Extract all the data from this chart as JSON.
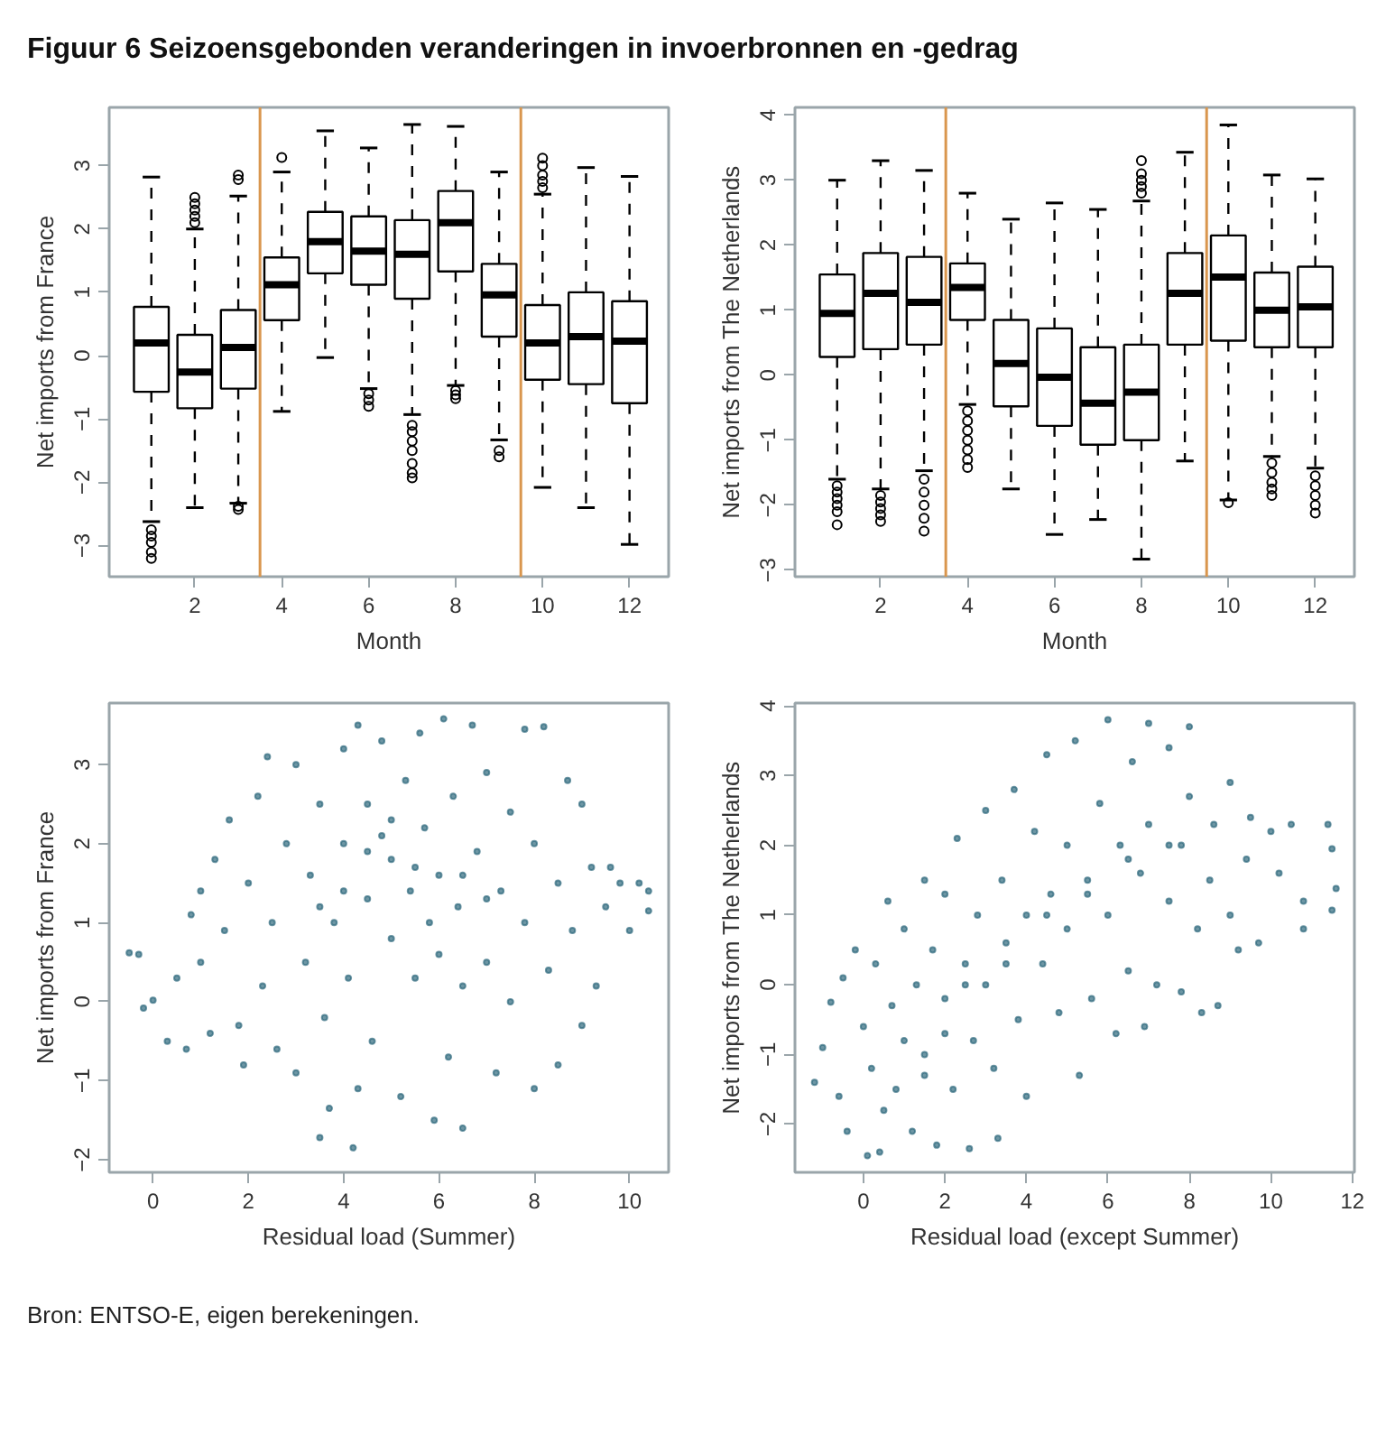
{
  "chart_data": [
    {
      "type": "box",
      "title": "Figuur 6  Seizoensgebonden veranderingen in invoerbronnen en -gedrag",
      "xlabel": "Month",
      "ylabel": "Net imports from France",
      "x": [
        1,
        2,
        3,
        4,
        5,
        6,
        7,
        8,
        9,
        10,
        11,
        12
      ],
      "xlim": [
        0.03,
        12.9
      ],
      "xticks": [
        2,
        4,
        6,
        8,
        10,
        12
      ],
      "ylim": [
        -3.49,
        3.92
      ],
      "yticks": [
        -3,
        -2,
        -1,
        0,
        1,
        2,
        3
      ],
      "boxes": [
        {
          "low": -2.62,
          "q1": -0.57,
          "median": 0.2,
          "q3": 0.77,
          "high": 2.82,
          "outliers": [
            -2.75,
            -2.85,
            -2.95,
            -3.1,
            -3.2
          ]
        },
        {
          "low": -2.4,
          "q1": -0.83,
          "median": -0.26,
          "q3": 0.33,
          "high": 2.0,
          "outliers": [
            2.1,
            2.2,
            2.3,
            2.4,
            2.5
          ]
        },
        {
          "low": -2.33,
          "q1": -0.52,
          "median": 0.13,
          "q3": 0.72,
          "high": 2.52,
          "outliers": [
            2.78,
            2.85,
            -2.38,
            -2.43
          ]
        },
        {
          "low": -0.88,
          "q1": 0.56,
          "median": 1.12,
          "q3": 1.55,
          "high": 2.9,
          "outliers": [
            3.13
          ]
        },
        {
          "low": -0.03,
          "q1": 1.3,
          "median": 1.8,
          "q3": 2.27,
          "high": 3.55
        },
        {
          "low": -0.52,
          "q1": 1.12,
          "median": 1.65,
          "q3": 2.2,
          "high": 3.28,
          "outliers": [
            -0.6,
            -0.7,
            -0.8
          ]
        },
        {
          "low": -0.93,
          "q1": 0.9,
          "median": 1.6,
          "q3": 2.14,
          "high": 3.65,
          "outliers": [
            -1.1,
            -1.2,
            -1.35,
            -1.5,
            -1.7,
            -1.85,
            -1.93
          ]
        },
        {
          "low": -0.47,
          "q1": 1.33,
          "median": 2.1,
          "q3": 2.6,
          "high": 3.62,
          "outliers": [
            -0.55,
            -0.62,
            -0.68
          ]
        },
        {
          "low": -1.33,
          "q1": 0.3,
          "median": 0.96,
          "q3": 1.45,
          "high": 2.9,
          "outliers": [
            -1.5,
            -1.6
          ]
        },
        {
          "low": -2.08,
          "q1": -0.38,
          "median": 0.2,
          "q3": 0.8,
          "high": 2.55,
          "outliers": [
            2.65,
            2.75,
            2.85,
            3.0,
            3.12
          ]
        },
        {
          "low": -2.4,
          "q1": -0.45,
          "median": 0.3,
          "q3": 1.0,
          "high": 2.97
        },
        {
          "low": -2.98,
          "q1": -0.75,
          "median": 0.23,
          "q3": 0.86,
          "high": 2.83
        }
      ],
      "ref_lines": [
        {
          "axis": "x",
          "value": 3.5,
          "color": "#d9964e"
        },
        {
          "axis": "x",
          "value": 9.5,
          "color": "#d9964e"
        }
      ]
    },
    {
      "type": "box",
      "xlabel": "Month",
      "ylabel": "Net imports from The Netherlands",
      "x": [
        1,
        2,
        3,
        4,
        5,
        6,
        7,
        8,
        9,
        10,
        11,
        12
      ],
      "xlim": [
        0.03,
        12.9
      ],
      "xticks": [
        2,
        4,
        6,
        8,
        10,
        12
      ],
      "ylim": [
        -3.1,
        4.12
      ],
      "yticks": [
        -3,
        -2,
        -1,
        0,
        1,
        2,
        3,
        4
      ],
      "boxes": [
        {
          "low": -1.6,
          "q1": 0.28,
          "median": 0.95,
          "q3": 1.55,
          "high": 3.0,
          "outliers": [
            -1.7,
            -1.8,
            -1.9,
            -2.0,
            -2.1,
            -2.3
          ]
        },
        {
          "low": -1.75,
          "q1": 0.4,
          "median": 1.26,
          "q3": 1.88,
          "high": 3.3,
          "outliers": [
            -1.85,
            -1.95,
            -2.05,
            -2.15,
            -2.25
          ]
        },
        {
          "low": -1.47,
          "q1": 0.47,
          "median": 1.12,
          "q3": 1.82,
          "high": 3.15,
          "outliers": [
            -1.6,
            -1.8,
            -2.0,
            -2.2,
            -2.4
          ]
        },
        {
          "low": -0.45,
          "q1": 0.85,
          "median": 1.35,
          "q3": 1.72,
          "high": 2.8,
          "outliers": [
            -0.55,
            -0.7,
            -0.85,
            -1.0,
            -1.15,
            -1.3,
            -1.42
          ]
        },
        {
          "low": -1.75,
          "q1": -0.48,
          "median": 0.18,
          "q3": 0.85,
          "high": 2.4
        },
        {
          "low": -2.45,
          "q1": -0.78,
          "median": -0.03,
          "q3": 0.72,
          "high": 2.65
        },
        {
          "low": -2.22,
          "q1": -1.07,
          "median": -0.43,
          "q3": 0.43,
          "high": 2.55
        },
        {
          "low": -2.83,
          "q1": -1.0,
          "median": -0.26,
          "q3": 0.47,
          "high": 2.68,
          "outliers": [
            2.8,
            2.9,
            3.0,
            3.1,
            3.3
          ]
        },
        {
          "low": -1.32,
          "q1": 0.47,
          "median": 1.26,
          "q3": 1.88,
          "high": 3.43
        },
        {
          "low": -1.92,
          "q1": 0.53,
          "median": 1.51,
          "q3": 2.15,
          "high": 3.85,
          "outliers": [
            -1.96
          ]
        },
        {
          "low": -1.25,
          "q1": 0.43,
          "median": 1.0,
          "q3": 1.58,
          "high": 3.08,
          "outliers": [
            -1.35,
            -1.5,
            -1.65,
            -1.75,
            -1.85
          ]
        },
        {
          "low": -1.43,
          "q1": 0.43,
          "median": 1.05,
          "q3": 1.67,
          "high": 3.02,
          "outliers": [
            -1.55,
            -1.7,
            -1.85,
            -2.0,
            -2.12
          ]
        }
      ],
      "ref_lines": [
        {
          "axis": "x",
          "value": 3.5,
          "color": "#d9964e"
        },
        {
          "axis": "x",
          "value": 9.5,
          "color": "#d9964e"
        }
      ]
    },
    {
      "type": "scatter",
      "xlabel": "Residual load (Summer)",
      "ylabel": "Net imports from France",
      "color": "#2f6a7d",
      "marker": "circle",
      "xlim": [
        -0.92,
        10.82
      ],
      "xticks": [
        0,
        2,
        4,
        6,
        8,
        10
      ],
      "ylim": [
        -2.16,
        3.78
      ],
      "yticks": [
        -2,
        -1,
        0,
        1,
        2,
        3
      ],
      "x": [
        -0.5,
        -0.3,
        -0.2,
        0.0,
        0.3,
        0.5,
        0.7,
        0.8,
        1.0,
        1.0,
        1.2,
        1.3,
        1.5,
        1.6,
        1.8,
        1.9,
        2.0,
        2.2,
        2.3,
        2.4,
        2.5,
        2.6,
        2.8,
        3.0,
        3.0,
        3.2,
        3.3,
        3.5,
        3.6,
        3.7,
        3.5,
        3.8,
        4.0,
        4.0,
        4.1,
        4.2,
        4.3,
        4.3,
        4.5,
        4.5,
        4.6,
        4.8,
        4.8,
        5.0,
        5.0,
        5.2,
        5.3,
        5.4,
        5.5,
        5.6,
        5.7,
        5.9,
        6.0,
        6.0,
        6.1,
        6.2,
        6.3,
        6.4,
        6.5,
        6.5,
        6.7,
        6.8,
        7.0,
        7.0,
        7.2,
        7.3,
        7.5,
        7.5,
        7.8,
        7.8,
        8.0,
        8.0,
        8.2,
        8.3,
        8.5,
        8.5,
        8.7,
        8.8,
        9.0,
        9.0,
        9.2,
        9.3,
        9.5,
        9.6,
        9.8,
        10.0,
        10.2,
        10.4,
        10.4,
        4.5,
        5.5,
        5.0,
        6.5,
        4.0,
        5.8,
        3.5,
        7.0
      ],
      "values": [
        0.62,
        0.6,
        -0.08,
        0.02,
        -0.5,
        0.3,
        -0.6,
        1.1,
        0.5,
        1.4,
        -0.4,
        1.8,
        0.9,
        2.3,
        -0.3,
        -0.8,
        1.5,
        2.6,
        0.2,
        3.1,
        1.0,
        -0.6,
        2.0,
        3.0,
        -0.9,
        0.5,
        1.6,
        2.5,
        -0.2,
        -1.35,
        -1.72,
        1.0,
        3.2,
        2.0,
        0.3,
        -1.85,
        3.5,
        -1.1,
        2.5,
        1.3,
        -0.5,
        3.3,
        2.1,
        0.8,
        1.8,
        -1.2,
        2.8,
        1.4,
        0.3,
        3.4,
        2.2,
        -1.5,
        1.6,
        0.6,
        3.58,
        -0.7,
        2.6,
        1.2,
        -1.6,
        0.2,
        3.5,
        1.9,
        0.5,
        2.9,
        -0.9,
        1.4,
        2.4,
        0.0,
        3.45,
        1.0,
        -1.1,
        2.0,
        3.48,
        0.4,
        1.5,
        -0.8,
        2.8,
        0.9,
        2.5,
        -0.3,
        1.7,
        0.2,
        1.2,
        1.7,
        1.5,
        0.9,
        1.5,
        1.4,
        1.15,
        1.9,
        1.7,
        2.3,
        1.6,
        1.4,
        1.0,
        1.2,
        1.3
      ]
    },
    {
      "type": "scatter",
      "xlabel": "Residual load (except Summer)",
      "ylabel": "Net imports from The Netherlands",
      "color": "#2f6a7d",
      "marker": "circle",
      "xlim": [
        -1.68,
        12.05
      ],
      "xticks": [
        0,
        2,
        4,
        6,
        8,
        10,
        12
      ],
      "ylim": [
        -2.69,
        4.04
      ],
      "yticks": [
        -2,
        -1,
        0,
        1,
        2,
        3,
        4
      ],
      "x": [
        -1.2,
        -1.0,
        -0.8,
        -0.6,
        -0.5,
        -0.4,
        -0.2,
        0.0,
        0.1,
        0.2,
        0.3,
        0.4,
        0.5,
        0.6,
        0.7,
        0.8,
        1.0,
        1.0,
        1.2,
        1.3,
        1.5,
        1.5,
        1.7,
        1.8,
        2.0,
        2.0,
        2.2,
        2.3,
        2.5,
        2.6,
        2.7,
        2.8,
        3.0,
        3.0,
        3.2,
        3.3,
        3.4,
        3.5,
        3.7,
        3.8,
        4.0,
        4.0,
        4.2,
        4.4,
        4.5,
        4.6,
        4.8,
        5.0,
        5.0,
        5.2,
        5.3,
        5.5,
        5.6,
        5.8,
        6.0,
        6.0,
        6.2,
        6.3,
        6.5,
        6.6,
        6.8,
        6.9,
        7.0,
        7.0,
        7.2,
        7.5,
        7.5,
        7.8,
        7.8,
        8.0,
        8.0,
        8.2,
        8.3,
        8.5,
        8.6,
        8.7,
        9.0,
        9.0,
        9.2,
        9.4,
        9.5,
        9.7,
        10.0,
        10.2,
        10.5,
        10.8,
        10.8,
        11.4,
        11.5,
        11.6,
        11.5,
        2.5,
        3.5,
        4.5,
        5.5,
        6.5,
        7.5,
        2.0,
        1.5
      ],
      "values": [
        -1.4,
        -0.9,
        -0.25,
        -1.6,
        0.1,
        -2.1,
        0.5,
        -0.6,
        -2.45,
        -1.2,
        0.3,
        -2.4,
        -1.8,
        1.2,
        -0.3,
        -1.5,
        0.8,
        -0.8,
        -2.1,
        0.0,
        1.5,
        -1.0,
        0.5,
        -2.3,
        -0.2,
        1.3,
        -1.5,
        2.1,
        0.3,
        -2.35,
        -0.8,
        1.0,
        2.5,
        0.0,
        -1.2,
        -2.2,
        1.5,
        0.6,
        2.8,
        -0.5,
        1.0,
        -1.6,
        2.2,
        0.3,
        3.3,
        1.3,
        -0.4,
        2.0,
        0.8,
        3.5,
        -1.3,
        1.5,
        -0.2,
        2.6,
        3.8,
        1.0,
        -0.7,
        2.0,
        0.2,
        3.2,
        1.6,
        -0.6,
        3.75,
        2.3,
        0.0,
        1.2,
        3.4,
        2.0,
        -0.1,
        3.7,
        2.7,
        0.8,
        -0.4,
        1.5,
        2.3,
        -0.3,
        2.9,
        1.0,
        0.5,
        1.8,
        2.4,
        0.6,
        2.2,
        1.6,
        2.3,
        1.2,
        0.8,
        2.3,
        1.95,
        1.38,
        1.07,
        0.0,
        0.3,
        1.0,
        1.3,
        1.8,
        2.0,
        -0.7,
        -1.3
      ],
      "annotations": [
        "Bron: ENTSO-E, eigen berekeningen."
      ]
    }
  ]
}
